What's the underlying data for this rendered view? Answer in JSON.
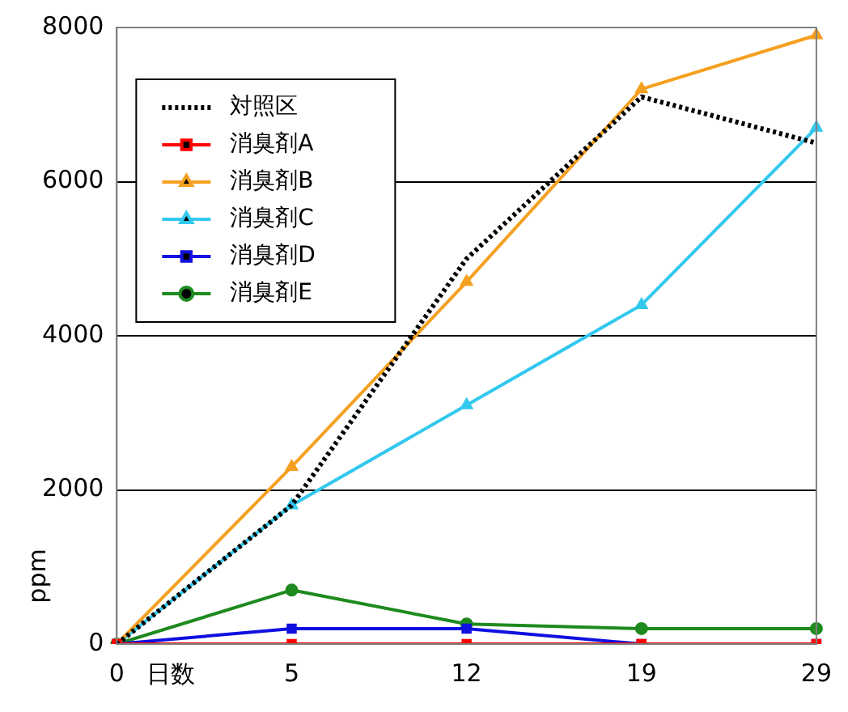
{
  "chart_data": {
    "type": "line",
    "xlabel": "日数",
    "ylabel": "ppm",
    "categories": [
      "0",
      "5",
      "12",
      "19",
      "29"
    ],
    "ylim": [
      0,
      8000
    ],
    "yticks": [
      0,
      2000,
      4000,
      6000,
      8000
    ],
    "grid": "y",
    "legend": "top left",
    "series": [
      {
        "name": "対照区",
        "color": "#000000",
        "values": [
          0,
          1800,
          5000,
          7100,
          6500
        ],
        "marker": "none",
        "line_style": "dotted"
      },
      {
        "name": "消臭剤A",
        "color": "#ff0000",
        "values": [
          0,
          0,
          0,
          0,
          0
        ],
        "marker": "square",
        "line_style": "solid"
      },
      {
        "name": "消臭剤B",
        "color": "#f5a020",
        "values": [
          0,
          2300,
          4700,
          7200,
          7900
        ],
        "marker": "triangle",
        "line_style": "solid"
      },
      {
        "name": "消臭剤C",
        "color": "#33c8ee",
        "values": [
          0,
          1800,
          3100,
          4400,
          6700
        ],
        "marker": "triangle",
        "line_style": "solid"
      },
      {
        "name": "消臭剤D",
        "color": "#1010e0",
        "values": [
          0,
          200,
          200,
          0,
          0
        ],
        "marker": "square",
        "line_style": "solid"
      },
      {
        "name": "消臭剤E",
        "color": "#1e8a1e",
        "values": [
          0,
          700,
          260,
          200,
          200
        ],
        "marker": "circle",
        "line_style": "solid"
      }
    ]
  }
}
